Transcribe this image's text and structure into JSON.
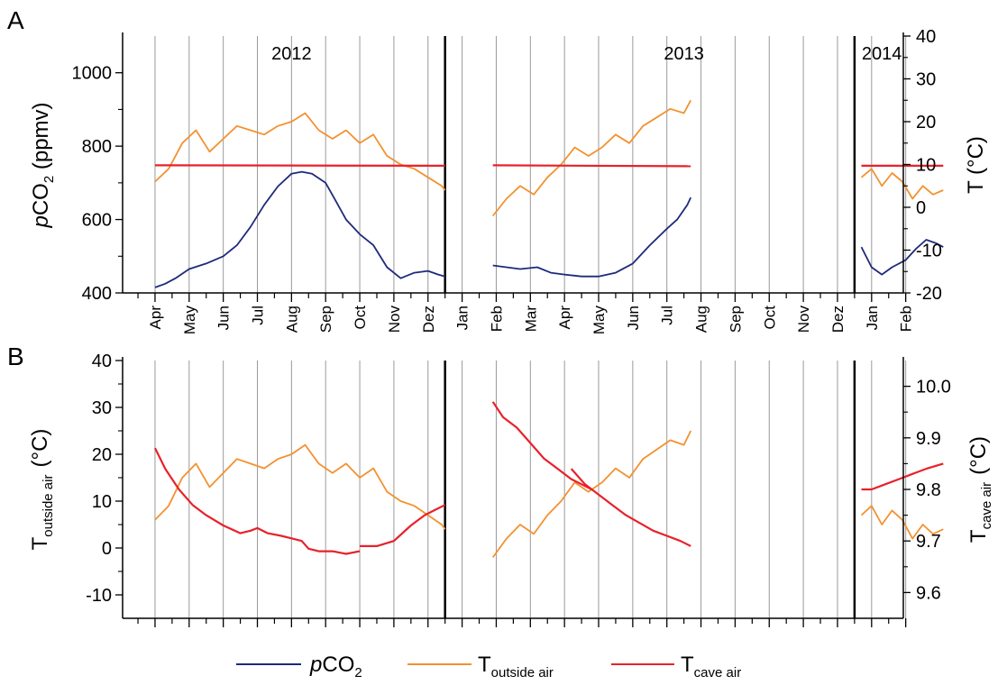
{
  "panel_labels": [
    "A",
    "B"
  ],
  "chart_data": [
    {
      "panel": "A",
      "type": "line",
      "x_axis": {
        "type": "month",
        "start": "2012-04",
        "end": "2014-02",
        "tick_labels": [
          "Apr",
          "May",
          "Jun",
          "Jul",
          "Aug",
          "Sep",
          "Oct",
          "Nov",
          "Dez",
          "Jan",
          "Feb",
          "Mar",
          "Apr",
          "May",
          "Jun",
          "Jul",
          "Aug",
          "Sep",
          "Oct",
          "Nov",
          "Dez",
          "Jan",
          "Feb"
        ],
        "year_labels": [
          {
            "label": "2012",
            "month_index": 4
          },
          {
            "label": "2013",
            "month_index": 15.5
          },
          {
            "label": "2014",
            "month_index": 21.3
          }
        ],
        "year_boundaries_month_index": [
          9,
          21
        ],
        "grid": "vertical lines at each month"
      },
      "y_left": {
        "label_prefix": "p",
        "label_main": "CO",
        "label_sub": "2",
        "label_suffix": " (ppmv)",
        "ylim": [
          400,
          1100
        ],
        "ticks": [
          400,
          600,
          800,
          1000
        ]
      },
      "y_right": {
        "label": "T (°C)",
        "ylim": [
          -20,
          40
        ],
        "ticks": [
          -20,
          -10,
          0,
          10,
          20,
          30,
          40
        ]
      },
      "series": [
        {
          "key": "pco2",
          "color": "#1f2a7a",
          "axis": "left",
          "segments": [
            {
              "x": [
                0.0,
                0.3,
                0.6,
                1.0,
                1.5,
                2.0,
                2.4,
                2.8,
                3.2,
                3.6,
                4.0,
                4.3,
                4.6,
                5.0,
                5.3,
                5.6,
                6.0,
                6.4,
                6.8,
                7.2,
                7.6,
                8.0,
                8.3,
                8.5
              ],
              "y": [
                415,
                425,
                440,
                465,
                480,
                500,
                530,
                580,
                640,
                690,
                725,
                730,
                725,
                700,
                650,
                600,
                560,
                530,
                470,
                440,
                455,
                460,
                450,
                445
              ]
            },
            {
              "x": [
                9.9,
                10.3,
                10.7,
                11.2,
                11.6,
                12.0,
                12.5,
                13.0,
                13.5,
                14.0,
                14.5,
                15.0,
                15.3,
                15.6,
                15.7
              ],
              "y": [
                475,
                470,
                465,
                470,
                455,
                450,
                445,
                445,
                455,
                480,
                530,
                575,
                600,
                640,
                660
              ]
            },
            {
              "x": [
                20.7,
                21.0,
                21.3,
                21.6,
                22.0,
                22.3,
                22.6,
                22.9,
                23.1
              ],
              "y": [
                525,
                470,
                450,
                470,
                490,
                520,
                545,
                535,
                525
              ]
            }
          ]
        },
        {
          "key": "t_outside",
          "color": "#f39130",
          "axis": "right",
          "segments": [
            {
              "x": [
                0.0,
                0.4,
                0.8,
                1.2,
                1.6,
                2.0,
                2.4,
                2.8,
                3.2,
                3.6,
                4.0,
                4.4,
                4.8,
                5.2,
                5.6,
                6.0,
                6.4,
                6.8,
                7.2,
                7.6,
                8.0,
                8.4,
                8.5
              ],
              "y": [
                6,
                9,
                15,
                18,
                13,
                16,
                19,
                18,
                17,
                19,
                20,
                22,
                18,
                16,
                18,
                15,
                17,
                12,
                10,
                9,
                7,
                5,
                4
              ]
            },
            {
              "x": [
                9.9,
                10.3,
                10.7,
                11.1,
                11.5,
                11.9,
                12.3,
                12.7,
                13.1,
                13.5,
                13.9,
                14.3,
                14.7,
                15.1,
                15.5,
                15.7
              ],
              "y": [
                -2,
                2,
                5,
                3,
                7,
                10,
                14,
                12,
                14,
                17,
                15,
                19,
                21,
                23,
                22,
                25
              ]
            },
            {
              "x": [
                20.7,
                21.0,
                21.3,
                21.6,
                21.9,
                22.2,
                22.5,
                22.8,
                23.1
              ],
              "y": [
                7,
                9,
                5,
                8,
                6,
                2,
                5,
                3,
                4
              ]
            }
          ]
        },
        {
          "key": "t_cave",
          "color": "#e8212a",
          "axis": "right",
          "segments": [
            {
              "x": [
                0.0,
                8.5
              ],
              "y": [
                9.8,
                9.7
              ]
            },
            {
              "x": [
                9.9,
                15.7
              ],
              "y": [
                9.8,
                9.6
              ]
            },
            {
              "x": [
                20.7,
                23.1
              ],
              "y": [
                9.7,
                9.7
              ]
            }
          ]
        }
      ]
    },
    {
      "panel": "B",
      "type": "line",
      "x_axis": {
        "type": "month",
        "shared_with": "A",
        "year_boundaries_month_index": [
          9,
          21
        ]
      },
      "y_left": {
        "label_main": "T",
        "label_sub": "outside air",
        "label_suffix": "(°C)",
        "ylim": [
          -15,
          40
        ],
        "ticks": [
          -10,
          0,
          10,
          20,
          30,
          40
        ]
      },
      "y_right": {
        "label_main": "T",
        "label_sub": "cave air",
        "label_suffix": "(°C)",
        "ylim": [
          9.55,
          10.05
        ],
        "ticks": [
          9.6,
          9.7,
          9.8,
          9.9,
          10.0
        ],
        "tick_labels": [
          "9.6",
          "9.7",
          "9.8",
          "9.9",
          "10.0"
        ]
      },
      "series": [
        {
          "key": "t_outside",
          "color": "#f39130",
          "axis": "left",
          "segments": [
            {
              "x": [
                0.0,
                0.4,
                0.8,
                1.2,
                1.6,
                2.0,
                2.4,
                2.8,
                3.2,
                3.6,
                4.0,
                4.4,
                4.8,
                5.2,
                5.6,
                6.0,
                6.4,
                6.8,
                7.2,
                7.6,
                8.0,
                8.4,
                8.5
              ],
              "y": [
                6,
                9,
                15,
                18,
                13,
                16,
                19,
                18,
                17,
                19,
                20,
                22,
                18,
                16,
                18,
                15,
                17,
                12,
                10,
                9,
                7,
                5,
                4
              ]
            },
            {
              "x": [
                9.9,
                10.3,
                10.7,
                11.1,
                11.5,
                11.9,
                12.3,
                12.7,
                13.1,
                13.5,
                13.9,
                14.3,
                14.7,
                15.1,
                15.5,
                15.7
              ],
              "y": [
                -2,
                2,
                5,
                3,
                7,
                10,
                14,
                12,
                14,
                17,
                15,
                19,
                21,
                23,
                22,
                25
              ]
            },
            {
              "x": [
                20.7,
                21.0,
                21.3,
                21.6,
                21.9,
                22.2,
                22.5,
                22.8,
                23.1
              ],
              "y": [
                7,
                9,
                5,
                8,
                6,
                2,
                5,
                3,
                4
              ]
            }
          ]
        },
        {
          "key": "t_cave",
          "color": "#e8212a",
          "axis": "right",
          "segments": [
            {
              "x": [
                0.0,
                0.3,
                0.7,
                1.1,
                1.5,
                2.0,
                2.5,
                2.8,
                3.0,
                3.3,
                3.7,
                4.0,
                4.3,
                4.5,
                4.8,
                5.2,
                5.6,
                6.0
              ],
              "y": [
                9.88,
                9.84,
                9.8,
                9.77,
                9.75,
                9.73,
                9.715,
                9.72,
                9.725,
                9.715,
                9.71,
                9.705,
                9.7,
                9.685,
                9.68,
                9.68,
                9.675,
                9.68
              ]
            },
            {
              "x": [
                6.0,
                6.5,
                7.0,
                7.5,
                7.9,
                8.2,
                8.5
              ],
              "y": [
                9.69,
                9.69,
                9.7,
                9.73,
                9.75,
                9.76,
                9.77
              ]
            },
            {
              "x": [
                9.9,
                10.2,
                10.6,
                11.0,
                11.4,
                11.8,
                12.2,
                12.5,
                12.8
              ],
              "y": [
                9.97,
                9.94,
                9.92,
                9.89,
                9.86,
                9.84,
                9.82,
                9.81,
                9.8
              ]
            },
            {
              "x": [
                12.2,
                12.6,
                13.0,
                13.4,
                13.8,
                14.2,
                14.6,
                15.0,
                15.4,
                15.7
              ],
              "y": [
                9.84,
                9.81,
                9.79,
                9.77,
                9.75,
                9.735,
                9.72,
                9.71,
                9.7,
                9.69
              ]
            },
            {
              "x": [
                20.7,
                21.0,
                21.4,
                21.8,
                22.2,
                22.6,
                23.1
              ],
              "y": [
                9.8,
                9.8,
                9.81,
                9.82,
                9.83,
                9.84,
                9.85
              ]
            }
          ]
        }
      ]
    }
  ],
  "legend": {
    "placement": "bottom-center",
    "items": [
      {
        "key": "pco2",
        "label_prefix": "p",
        "label_main": "CO",
        "label_sub": "2",
        "color": "#1f2a7a"
      },
      {
        "key": "t_outside",
        "label_main": "T",
        "label_sub": "outside air",
        "color": "#f39130"
      },
      {
        "key": "t_cave",
        "label_main": "T",
        "label_sub": "cave air",
        "color": "#e8212a"
      }
    ]
  }
}
